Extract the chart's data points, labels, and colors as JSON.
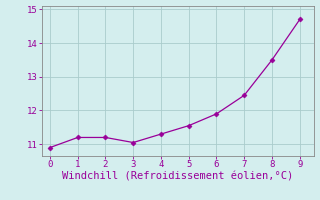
{
  "x": [
    0,
    1,
    2,
    3,
    4,
    5,
    6,
    7,
    8,
    9
  ],
  "y": [
    10.9,
    11.2,
    11.2,
    11.05,
    11.3,
    11.55,
    11.9,
    12.45,
    13.5,
    14.7
  ],
  "line_color": "#990099",
  "marker": "D",
  "marker_size": 2.5,
  "xlabel": "Windchill (Refroidissement éolien,°C)",
  "xlabel_color": "#990099",
  "xlabel_fontsize": 7.5,
  "bg_color": "#d4eeee",
  "grid_color": "#aacccc",
  "tick_color": "#990099",
  "spine_color": "#888888",
  "xlim": [
    -0.3,
    9.5
  ],
  "ylim": [
    10.65,
    15.1
  ],
  "yticks": [
    11,
    12,
    13,
    14,
    15
  ],
  "xticks": [
    0,
    1,
    2,
    3,
    4,
    5,
    6,
    7,
    8,
    9
  ]
}
